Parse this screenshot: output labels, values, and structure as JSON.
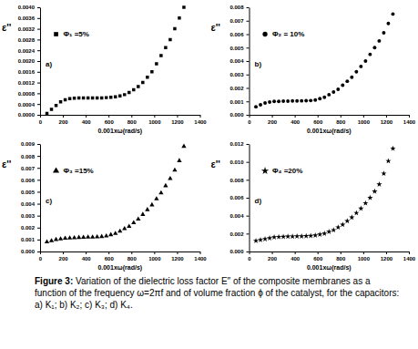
{
  "chart_data": [
    {
      "type": "scatter",
      "annotations": [
        "a)"
      ],
      "x_label": "0.001xω(rad/s)",
      "y_label": "ε''",
      "x": [
        60,
        100,
        140,
        180,
        220,
        260,
        300,
        340,
        380,
        420,
        460,
        500,
        540,
        580,
        620,
        660,
        700,
        740,
        780,
        820,
        860,
        900,
        940,
        980,
        1020,
        1060,
        1100,
        1140,
        1180,
        1220,
        1260
      ],
      "series": [
        {
          "name": "Φ₁ =5%",
          "color": "#000000",
          "marker": "square",
          "values": [
            5e-05,
            0.0002,
            0.00035,
            0.00048,
            0.00056,
            0.0006,
            0.00062,
            0.00063,
            0.00063,
            0.00063,
            0.00063,
            0.00063,
            0.00063,
            0.00064,
            0.00065,
            0.00067,
            0.0007,
            0.00075,
            0.00083,
            0.00093,
            0.00105,
            0.0012,
            0.0014,
            0.0016,
            0.0019,
            0.0022,
            0.0025,
            0.0028,
            0.0032,
            0.0036,
            0.004
          ]
        }
      ],
      "xlim": [
        0,
        1400
      ],
      "xticks": [
        0,
        200,
        400,
        600,
        800,
        1000,
        1200,
        1400
      ],
      "ylim": [
        0,
        0.004
      ],
      "yticks": [
        {
          "value": 0,
          "label": "0.0000"
        },
        {
          "value": 0.0004,
          "label": "0.0004"
        },
        {
          "value": 0.0008,
          "label": "0.0008"
        },
        {
          "value": 0.0012,
          "label": "0.0012"
        },
        {
          "value": 0.0016,
          "label": "0.0016"
        },
        {
          "value": 0.002,
          "label": "0.0020"
        },
        {
          "value": 0.0024,
          "label": "0.0024"
        },
        {
          "value": 0.0028,
          "label": "0.0028"
        },
        {
          "value": 0.0032,
          "label": "0.0032"
        },
        {
          "value": 0.0036,
          "label": "0.0036"
        },
        {
          "value": 0.004,
          "label": "0.0040"
        }
      ],
      "grid": false,
      "legend": "upper left"
    },
    {
      "type": "scatter",
      "annotations": [
        "b)"
      ],
      "x_label": "0.001xω(rad/s)",
      "y_label": "ε''",
      "x": [
        60,
        100,
        140,
        180,
        220,
        260,
        300,
        340,
        380,
        420,
        460,
        500,
        540,
        580,
        620,
        660,
        700,
        740,
        780,
        820,
        860,
        900,
        940,
        980,
        1020,
        1060,
        1100,
        1140,
        1180,
        1220,
        1260
      ],
      "series": [
        {
          "name": "Φ₂ = 10%",
          "color": "#000000",
          "marker": "circle",
          "values": [
            0.0006,
            0.00075,
            0.00088,
            0.00095,
            0.001,
            0.001,
            0.00102,
            0.00102,
            0.00103,
            0.00103,
            0.00104,
            0.00105,
            0.00106,
            0.0011,
            0.0012,
            0.0013,
            0.0015,
            0.0017,
            0.0019,
            0.0022,
            0.0025,
            0.0028,
            0.0032,
            0.0036,
            0.004,
            0.0045,
            0.005,
            0.0055,
            0.0061,
            0.0068,
            0.0075
          ]
        }
      ],
      "xlim": [
        0,
        1400
      ],
      "xticks": [
        0,
        200,
        400,
        600,
        800,
        1000,
        1200,
        1400
      ],
      "ylim": [
        0,
        0.008
      ],
      "yticks": [
        {
          "value": 0,
          "label": "0.000"
        },
        {
          "value": 0.001,
          "label": "0.001"
        },
        {
          "value": 0.002,
          "label": "0.002"
        },
        {
          "value": 0.003,
          "label": "0.003"
        },
        {
          "value": 0.004,
          "label": "0.004"
        },
        {
          "value": 0.005,
          "label": "0.005"
        },
        {
          "value": 0.006,
          "label": "0.006"
        },
        {
          "value": 0.007,
          "label": "0.007"
        },
        {
          "value": 0.008,
          "label": "0.008"
        }
      ],
      "grid": false,
      "legend": "upper left"
    },
    {
      "type": "scatter",
      "annotations": [
        "c)"
      ],
      "x_label": "0.001xω(rad/s)",
      "y_label": "ε''",
      "x": [
        60,
        100,
        140,
        180,
        220,
        260,
        300,
        340,
        380,
        420,
        460,
        500,
        540,
        580,
        620,
        660,
        700,
        740,
        780,
        820,
        860,
        900,
        940,
        980,
        1020,
        1060,
        1100,
        1140,
        1180,
        1220,
        1260
      ],
      "series": [
        {
          "name": "Φ₃ =15%",
          "color": "#000000",
          "marker": "triangle",
          "values": [
            0.0008,
            0.0009,
            0.001,
            0.00105,
            0.0011,
            0.00113,
            0.00115,
            0.00117,
            0.00118,
            0.0012,
            0.0012,
            0.00122,
            0.00125,
            0.0013,
            0.0014,
            0.0015,
            0.0017,
            0.0019,
            0.0021,
            0.0024,
            0.0027,
            0.0031,
            0.0035,
            0.0039,
            0.0044,
            0.0049,
            0.0055,
            0.0061,
            0.0068,
            0.0076,
            0.0088
          ]
        }
      ],
      "xlim": [
        0,
        1400
      ],
      "xticks": [
        0,
        200,
        400,
        600,
        800,
        1000,
        1200,
        1400
      ],
      "ylim": [
        0,
        0.009
      ],
      "yticks": [
        {
          "value": 0,
          "label": "0.000"
        },
        {
          "value": 0.001,
          "label": "0.001"
        },
        {
          "value": 0.002,
          "label": "0.002"
        },
        {
          "value": 0.003,
          "label": "0.003"
        },
        {
          "value": 0.004,
          "label": "0.004"
        },
        {
          "value": 0.005,
          "label": "0.005"
        },
        {
          "value": 0.006,
          "label": "0.006"
        },
        {
          "value": 0.007,
          "label": "0.007"
        },
        {
          "value": 0.008,
          "label": "0.008"
        },
        {
          "value": 0.009,
          "label": "0.009"
        }
      ],
      "grid": false,
      "legend": "upper left"
    },
    {
      "type": "scatter",
      "annotations": [
        "d)"
      ],
      "x_label": "0.001xω(rad/s)",
      "y_label": "ε''",
      "x": [
        60,
        100,
        140,
        180,
        220,
        260,
        300,
        340,
        380,
        420,
        460,
        500,
        540,
        580,
        620,
        660,
        700,
        740,
        780,
        820,
        860,
        900,
        940,
        980,
        1020,
        1060,
        1100,
        1140,
        1180,
        1220,
        1260
      ],
      "series": [
        {
          "name": "Φ₄ =20%",
          "color": "#000000",
          "marker": "star",
          "values": [
            0.0012,
            0.0013,
            0.0014,
            0.0015,
            0.0016,
            0.00163,
            0.00165,
            0.00167,
            0.00168,
            0.0017,
            0.0017,
            0.00172,
            0.00175,
            0.0018,
            0.0019,
            0.002,
            0.0022,
            0.0024,
            0.0027,
            0.003,
            0.0034,
            0.0038,
            0.0043,
            0.0048,
            0.0054,
            0.006,
            0.0067,
            0.0075,
            0.0087,
            0.0101,
            0.0115
          ]
        }
      ],
      "xlim": [
        0,
        1400
      ],
      "xticks": [
        0,
        200,
        400,
        600,
        800,
        1000,
        1200,
        1400
      ],
      "ylim": [
        0,
        0.012
      ],
      "yticks": [
        {
          "value": 0,
          "label": "0.000"
        },
        {
          "value": 0.002,
          "label": "0.002"
        },
        {
          "value": 0.004,
          "label": "0.004"
        },
        {
          "value": 0.006,
          "label": "0.006"
        },
        {
          "value": 0.008,
          "label": "0.008"
        },
        {
          "value": 0.01,
          "label": "0.010"
        },
        {
          "value": 0.012,
          "label": "0.012"
        }
      ],
      "grid": false,
      "legend": "upper left"
    }
  ],
  "caption": {
    "label": "Figure 3:",
    "text": "Variation of the dielectric loss factor E″ of the composite membranes as a function of the frequency ω=2πf and of volume fraction ϕ of the catalyst, for the capacitors: a) K₁; b) K₂; c) K₃; d) K₄."
  }
}
